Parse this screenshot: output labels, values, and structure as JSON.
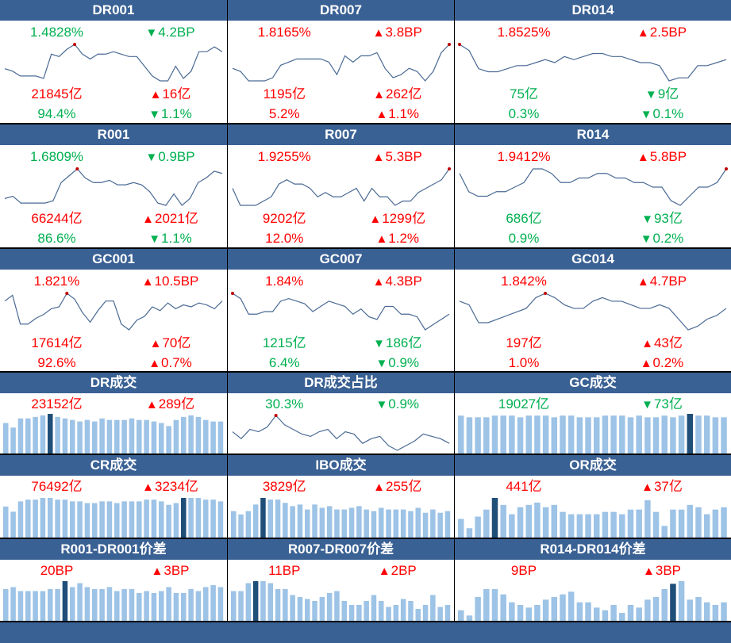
{
  "colors": {
    "header": "#3a6194",
    "up": "#ff0000",
    "down": "#00b050",
    "bar": "#9dc3e6",
    "bar_highlight": "#1f4e79",
    "line": "#4a6a94",
    "marker": "#c00000"
  },
  "panels": [
    {
      "title": "DR001",
      "rate": {
        "value": "1.4828%",
        "color": "down"
      },
      "rate_change": {
        "value": "4.2BP",
        "dir": "down"
      },
      "volume": {
        "value": "21845亿",
        "color": "up"
      },
      "volume_change": {
        "value": "16亿",
        "dir": "up"
      },
      "share": {
        "value": "94.4%",
        "color": "down"
      },
      "share_change": {
        "value": "1.1%",
        "dir": "down"
      },
      "chart": {
        "type": "line",
        "marker": 9,
        "values": [
          1.4,
          1.39,
          1.37,
          1.37,
          1.37,
          1.36,
          1.46,
          1.45,
          1.48,
          1.5,
          1.46,
          1.44,
          1.46,
          1.46,
          1.47,
          1.46,
          1.45,
          1.45,
          1.41,
          1.37,
          1.35,
          1.35,
          1.41,
          1.36,
          1.39,
          1.47,
          1.47,
          1.49,
          1.47
        ]
      }
    },
    {
      "title": "DR007",
      "rate": {
        "value": "1.8165%",
        "color": "up"
      },
      "rate_change": {
        "value": "3.8BP",
        "dir": "up"
      },
      "volume": {
        "value": "1195亿",
        "color": "up"
      },
      "volume_change": {
        "value": "262亿",
        "dir": "up"
      },
      "share": {
        "value": "5.2%",
        "color": "up"
      },
      "share_change": {
        "value": "1.1%",
        "dir": "up"
      },
      "chart": {
        "type": "line",
        "marker": 27,
        "values": [
          1.74,
          1.73,
          1.7,
          1.7,
          1.7,
          1.71,
          1.75,
          1.76,
          1.77,
          1.77,
          1.77,
          1.77,
          1.76,
          1.72,
          1.78,
          1.76,
          1.78,
          1.78,
          1.79,
          1.74,
          1.71,
          1.72,
          1.74,
          1.73,
          1.7,
          1.73,
          1.79,
          1.8165
        ]
      }
    },
    {
      "title": "DR014",
      "rate": {
        "value": "1.8525%",
        "color": "up"
      },
      "rate_change": {
        "value": "2.5BP",
        "dir": "up"
      },
      "volume": {
        "value": "75亿",
        "color": "down"
      },
      "volume_change": {
        "value": "9亿",
        "dir": "down"
      },
      "share": {
        "value": "0.3%",
        "color": "down"
      },
      "share_change": {
        "value": "0.1%",
        "dir": "down"
      },
      "chart": {
        "type": "line",
        "marker": 0,
        "values": [
          1.96,
          1.94,
          1.88,
          1.87,
          1.87,
          1.88,
          1.89,
          1.89,
          1.9,
          1.91,
          1.9,
          1.92,
          1.91,
          1.92,
          1.93,
          1.93,
          1.92,
          1.92,
          1.91,
          1.9,
          1.9,
          1.89,
          1.84,
          1.85,
          1.85,
          1.89,
          1.89,
          1.9,
          1.91
        ]
      }
    },
    {
      "title": "R001",
      "rate": {
        "value": "1.6809%",
        "color": "down"
      },
      "rate_change": {
        "value": "0.9BP",
        "dir": "down"
      },
      "volume": {
        "value": "66244亿",
        "color": "up"
      },
      "volume_change": {
        "value": "2021亿",
        "dir": "up"
      },
      "share": {
        "value": "86.6%",
        "color": "down"
      },
      "share_change": {
        "value": "1.1%",
        "dir": "down"
      },
      "chart": {
        "type": "line",
        "marker": 9,
        "values": [
          1.6,
          1.61,
          1.58,
          1.58,
          1.58,
          1.58,
          1.59,
          1.67,
          1.7,
          1.73,
          1.69,
          1.67,
          1.67,
          1.68,
          1.66,
          1.66,
          1.67,
          1.66,
          1.63,
          1.58,
          1.57,
          1.62,
          1.57,
          1.6,
          1.67,
          1.69,
          1.72,
          1.71
        ]
      }
    },
    {
      "title": "R007",
      "rate": {
        "value": "1.9255%",
        "color": "up"
      },
      "rate_change": {
        "value": "5.3BP",
        "dir": "up"
      },
      "volume": {
        "value": "9202亿",
        "color": "up"
      },
      "volume_change": {
        "value": "1299亿",
        "dir": "up"
      },
      "share": {
        "value": "12.0%",
        "color": "up"
      },
      "share_change": {
        "value": "1.2%",
        "dir": "up"
      },
      "chart": {
        "type": "line",
        "marker": 28,
        "values": [
          1.88,
          1.84,
          1.84,
          1.84,
          1.85,
          1.86,
          1.89,
          1.9,
          1.89,
          1.89,
          1.88,
          1.86,
          1.87,
          1.86,
          1.86,
          1.87,
          1.88,
          1.85,
          1.88,
          1.86,
          1.86,
          1.84,
          1.85,
          1.85,
          1.87,
          1.88,
          1.89,
          1.9,
          1.9255
        ]
      }
    },
    {
      "title": "R014",
      "rate": {
        "value": "1.9412%",
        "color": "up"
      },
      "rate_change": {
        "value": "5.8BP",
        "dir": "up"
      },
      "volume": {
        "value": "686亿",
        "color": "down"
      },
      "volume_change": {
        "value": "93亿",
        "dir": "down"
      },
      "share": {
        "value": "0.9%",
        "color": "down"
      },
      "share_change": {
        "value": "0.2%",
        "dir": "down"
      },
      "chart": {
        "type": "line",
        "marker": 29,
        "values": [
          1.93,
          1.89,
          1.88,
          1.88,
          1.89,
          1.89,
          1.9,
          1.91,
          1.94,
          1.94,
          1.93,
          1.91,
          1.91,
          1.92,
          1.92,
          1.93,
          1.93,
          1.92,
          1.92,
          1.91,
          1.91,
          1.9,
          1.9,
          1.87,
          1.86,
          1.88,
          1.9,
          1.9,
          1.91,
          1.94
        ]
      }
    },
    {
      "title": "GC001",
      "rate": {
        "value": "1.821%",
        "color": "up"
      },
      "rate_change": {
        "value": "10.5BP",
        "dir": "up"
      },
      "volume": {
        "value": "17614亿",
        "color": "up"
      },
      "volume_change": {
        "value": "70亿",
        "dir": "up"
      },
      "share": {
        "value": "92.6%",
        "color": "up"
      },
      "share_change": {
        "value": "0.7%",
        "dir": "up"
      },
      "chart": {
        "type": "line",
        "marker": 8,
        "values": [
          1.78,
          1.81,
          1.66,
          1.66,
          1.69,
          1.71,
          1.74,
          1.75,
          1.82,
          1.79,
          1.72,
          1.67,
          1.73,
          1.78,
          1.78,
          1.66,
          1.63,
          1.68,
          1.7,
          1.75,
          1.73,
          1.77,
          1.74,
          1.76,
          1.75,
          1.77,
          1.76,
          1.74,
          1.78
        ]
      }
    },
    {
      "title": "GC007",
      "rate": {
        "value": "1.84%",
        "color": "up"
      },
      "rate_change": {
        "value": "4.3BP",
        "dir": "up"
      },
      "volume": {
        "value": "1215亿",
        "color": "down"
      },
      "volume_change": {
        "value": "186亿",
        "dir": "down"
      },
      "share": {
        "value": "6.4%",
        "color": "down"
      },
      "share_change": {
        "value": "0.9%",
        "dir": "down"
      },
      "chart": {
        "type": "line",
        "marker": 0,
        "values": [
          1.84,
          1.82,
          1.76,
          1.76,
          1.77,
          1.77,
          1.81,
          1.82,
          1.81,
          1.8,
          1.77,
          1.79,
          1.81,
          1.8,
          1.79,
          1.76,
          1.78,
          1.75,
          1.74,
          1.79,
          1.79,
          1.76,
          1.76,
          1.75,
          1.7,
          1.72,
          1.74,
          1.76
        ]
      }
    },
    {
      "title": "GC014",
      "rate": {
        "value": "1.842%",
        "color": "up"
      },
      "rate_change": {
        "value": "4.7BP",
        "dir": "up"
      },
      "volume": {
        "value": "197亿",
        "color": "up"
      },
      "volume_change": {
        "value": "43亿",
        "dir": "up"
      },
      "share": {
        "value": "1.0%",
        "color": "up"
      },
      "share_change": {
        "value": "0.2%",
        "dir": "up"
      },
      "chart": {
        "type": "line",
        "marker": 9,
        "values": [
          1.82,
          1.81,
          1.76,
          1.76,
          1.77,
          1.78,
          1.79,
          1.8,
          1.83,
          1.842,
          1.83,
          1.81,
          1.8,
          1.8,
          1.82,
          1.83,
          1.82,
          1.82,
          1.81,
          1.8,
          1.8,
          1.81,
          1.8,
          1.77,
          1.74,
          1.75,
          1.77,
          1.78,
          1.8
        ]
      }
    },
    {
      "title": "DR成交",
      "volume": {
        "value": "23152亿",
        "color": "up"
      },
      "volume_change": {
        "value": "289亿",
        "dir": "up"
      },
      "chart": {
        "type": "bar",
        "highlight": 6,
        "values": [
          20,
          17,
          23,
          23,
          24,
          25,
          26,
          24,
          23,
          22,
          21,
          22,
          21,
          23,
          22,
          22,
          22,
          23,
          22,
          22,
          21,
          20,
          18,
          22,
          24,
          25,
          24,
          22,
          21,
          21
        ]
      }
    },
    {
      "title": "DR成交占比",
      "volume": {
        "value": "30.3%",
        "color": "down"
      },
      "volume_change": {
        "value": "0.9%",
        "dir": "down"
      },
      "chart": {
        "type": "line",
        "marker": 5,
        "values": [
          29.8,
          29.5,
          29.9,
          29.8,
          30.0,
          30.5,
          30.1,
          29.9,
          29.7,
          29.6,
          29.8,
          29.9,
          29.5,
          29.8,
          29.7,
          29.3,
          29.5,
          29.6,
          29.2,
          29.0,
          29.2,
          29.4,
          29.7,
          29.6,
          29.5,
          29.3
        ]
      }
    },
    {
      "title": "GC成交",
      "volume": {
        "value": "19027亿",
        "color": "down"
      },
      "volume_change": {
        "value": "73亿",
        "dir": "down"
      },
      "chart": {
        "type": "bar",
        "highlight": 27,
        "values": [
          22,
          21,
          21,
          21,
          22,
          22,
          22,
          21,
          22,
          22,
          22,
          21,
          22,
          22,
          21,
          21,
          21,
          22,
          22,
          22,
          21,
          22,
          21,
          21,
          22,
          21,
          22,
          23,
          22,
          22,
          21,
          21
        ]
      }
    },
    {
      "title": "CR成交",
      "volume": {
        "value": "76492亿",
        "color": "up"
      },
      "volume_change": {
        "value": "3234亿",
        "dir": "up"
      },
      "chart": {
        "type": "bar",
        "highlight": 24,
        "values": [
          18,
          15,
          21,
          22,
          22,
          23,
          23,
          22,
          22,
          21,
          21,
          20,
          20,
          21,
          21,
          20,
          21,
          21,
          21,
          22,
          22,
          21,
          19,
          20,
          23,
          23,
          23,
          22,
          22,
          21
        ]
      }
    },
    {
      "title": "IBO成交",
      "volume": {
        "value": "3829亿",
        "color": "up"
      },
      "volume_change": {
        "value": "255亿",
        "dir": "up"
      },
      "chart": {
        "type": "bar",
        "highlight": 4,
        "values": [
          16,
          14,
          16,
          20,
          24,
          23,
          23,
          21,
          19,
          20,
          17,
          20,
          18,
          19,
          17,
          17,
          18,
          19,
          17,
          16,
          18,
          17,
          17,
          17,
          16,
          18,
          15,
          17,
          15,
          16
        ]
      }
    },
    {
      "title": "OR成交",
      "volume": {
        "value": "441亿",
        "color": "up"
      },
      "volume_change": {
        "value": "37亿",
        "dir": "up"
      },
      "chart": {
        "type": "bar",
        "highlight": 4,
        "values": [
          8,
          4,
          9,
          12,
          17,
          14,
          10,
          13,
          14,
          15,
          13,
          14,
          11,
          10,
          10,
          10,
          10,
          11,
          11,
          10,
          12,
          12,
          16,
          11,
          5,
          12,
          12,
          14,
          13,
          10,
          12,
          13
        ]
      }
    },
    {
      "title": "R001-DR001价差",
      "volume": {
        "value": "20BP",
        "color": "up"
      },
      "volume_change": {
        "value": "3BP",
        "dir": "up"
      },
      "chart": {
        "type": "bar",
        "highlight": 8,
        "values": [
          16,
          17,
          15,
          15,
          15,
          15,
          16,
          16,
          20,
          17,
          19,
          17,
          16,
          16,
          17,
          15,
          16,
          16,
          14,
          15,
          14,
          15,
          17,
          14,
          14,
          16,
          15,
          17,
          18,
          17
        ]
      }
    },
    {
      "title": "R007-DR007价差",
      "volume": {
        "value": "11BP",
        "color": "up"
      },
      "volume_change": {
        "value": "2BP",
        "dir": "up"
      },
      "chart": {
        "type": "bar",
        "highlight": 3,
        "values": [
          15,
          15,
          19,
          20,
          20,
          19,
          16,
          16,
          13,
          12,
          11,
          10,
          12,
          14,
          15,
          10,
          8,
          8,
          10,
          13,
          10,
          7,
          8,
          11,
          10,
          6,
          8,
          13,
          7,
          8
        ]
      }
    },
    {
      "title": "R014-DR014价差",
      "volume": {
        "value": "9BP",
        "color": "up"
      },
      "volume_change": {
        "value": "3BP",
        "dir": "up"
      },
      "chart": {
        "type": "bar",
        "highlight": 25,
        "values": [
          4,
          2,
          9,
          12,
          12,
          10,
          7,
          6,
          5,
          6,
          8,
          9,
          10,
          11,
          7,
          7,
          5,
          4,
          6,
          3,
          6,
          5,
          8,
          9,
          12,
          14,
          15,
          8,
          9,
          7,
          6,
          7
        ]
      }
    }
  ]
}
